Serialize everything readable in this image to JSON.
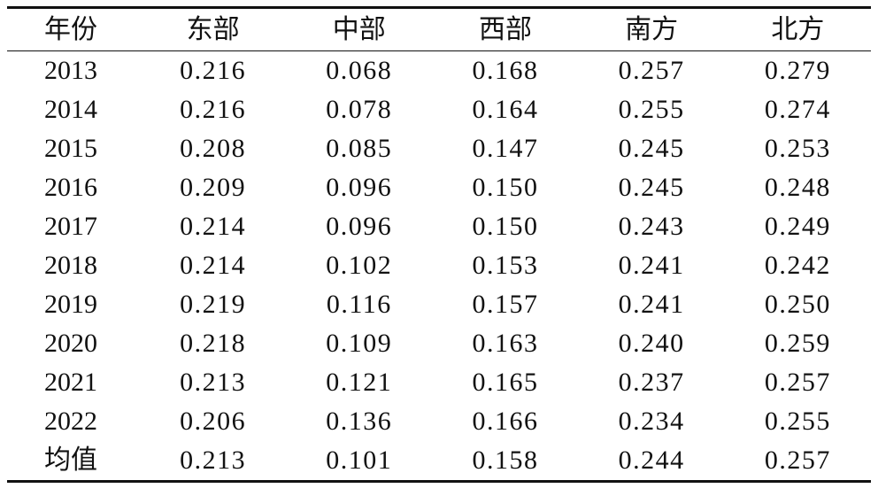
{
  "table": {
    "header": [
      "年份",
      "东部",
      "中部",
      "西部",
      "南方",
      "北方"
    ],
    "rows": [
      [
        "2013",
        "0.216",
        "0.068",
        "0.168",
        "0.257",
        "0.279"
      ],
      [
        "2014",
        "0.216",
        "0.078",
        "0.164",
        "0.255",
        "0.274"
      ],
      [
        "2015",
        "0.208",
        "0.085",
        "0.147",
        "0.245",
        "0.253"
      ],
      [
        "2016",
        "0.209",
        "0.096",
        "0.150",
        "0.245",
        "0.248"
      ],
      [
        "2017",
        "0.214",
        "0.096",
        "0.150",
        "0.243",
        "0.249"
      ],
      [
        "2018",
        "0.214",
        "0.102",
        "0.153",
        "0.241",
        "0.242"
      ],
      [
        "2019",
        "0.219",
        "0.116",
        "0.157",
        "0.241",
        "0.250"
      ],
      [
        "2020",
        "0.218",
        "0.109",
        "0.163",
        "0.240",
        "0.259"
      ],
      [
        "2021",
        "0.213",
        "0.121",
        "0.165",
        "0.237",
        "0.257"
      ],
      [
        "2022",
        "0.206",
        "0.136",
        "0.166",
        "0.234",
        "0.255"
      ],
      [
        "均值",
        "0.213",
        "0.101",
        "0.158",
        "0.244",
        "0.257"
      ]
    ]
  }
}
